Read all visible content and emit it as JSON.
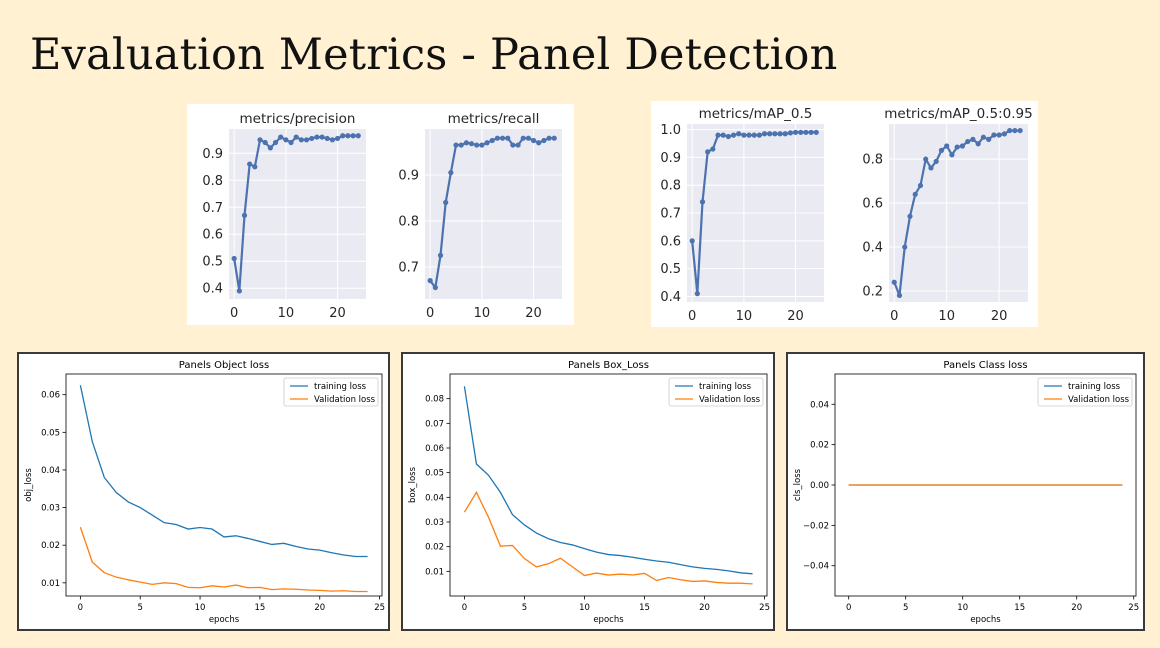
{
  "page": {
    "title": "Evaluation Metrics - Panel Detection"
  },
  "colors": {
    "page_bg": "#fff1d2",
    "metric_bg": "#eaeaf2",
    "metric_line": "#4c72b0",
    "train": "#1f77b4",
    "val": "#ff7f0e"
  },
  "chart_data": [
    {
      "type": "line",
      "title": "metrics/precision",
      "x": [
        0,
        1,
        2,
        3,
        4,
        5,
        6,
        7,
        8,
        9,
        10,
        11,
        12,
        13,
        14,
        15,
        16,
        17,
        18,
        19,
        20,
        21,
        22,
        23,
        24
      ],
      "series": [
        {
          "values": [
            0.51,
            0.39,
            0.67,
            0.86,
            0.85,
            0.95,
            0.94,
            0.92,
            0.94,
            0.96,
            0.95,
            0.94,
            0.96,
            0.95,
            0.95,
            0.955,
            0.96,
            0.96,
            0.955,
            0.95,
            0.955,
            0.965,
            0.965,
            0.965,
            0.965
          ]
        }
      ],
      "xlim": [
        -1,
        25.5
      ],
      "ylim": [
        0.36,
        0.99
      ],
      "xticks": [
        "0",
        "10",
        "20"
      ],
      "yticks": [
        "0.4",
        "0.5",
        "0.6",
        "0.7",
        "0.8",
        "0.9"
      ],
      "grid": true
    },
    {
      "type": "line",
      "title": "metrics/recall",
      "x": [
        0,
        1,
        2,
        3,
        4,
        5,
        6,
        7,
        8,
        9,
        10,
        11,
        12,
        13,
        14,
        15,
        16,
        17,
        18,
        19,
        20,
        21,
        22,
        23,
        24
      ],
      "series": [
        {
          "values": [
            0.67,
            0.655,
            0.725,
            0.84,
            0.905,
            0.965,
            0.965,
            0.97,
            0.968,
            0.965,
            0.965,
            0.97,
            0.975,
            0.98,
            0.98,
            0.98,
            0.965,
            0.965,
            0.98,
            0.98,
            0.975,
            0.97,
            0.975,
            0.98,
            0.98
          ]
        }
      ],
      "xlim": [
        -1,
        25.5
      ],
      "ylim": [
        0.63,
        1.0
      ],
      "xticks": [
        "0",
        "10",
        "20"
      ],
      "yticks": [
        "0.7",
        "0.8",
        "0.9"
      ],
      "grid": true
    },
    {
      "type": "line",
      "title": "metrics/mAP_0.5",
      "x": [
        0,
        1,
        2,
        3,
        4,
        5,
        6,
        7,
        8,
        9,
        10,
        11,
        12,
        13,
        14,
        15,
        16,
        17,
        18,
        19,
        20,
        21,
        22,
        23,
        24
      ],
      "series": [
        {
          "values": [
            0.6,
            0.41,
            0.74,
            0.92,
            0.93,
            0.98,
            0.98,
            0.975,
            0.98,
            0.985,
            0.98,
            0.98,
            0.98,
            0.98,
            0.985,
            0.985,
            0.985,
            0.985,
            0.985,
            0.988,
            0.99,
            0.99,
            0.99,
            0.99,
            0.99
          ]
        }
      ],
      "xlim": [
        -1,
        25.5
      ],
      "ylim": [
        0.38,
        1.02
      ],
      "xticks": [
        "0",
        "10",
        "20"
      ],
      "yticks": [
        "0.4",
        "0.5",
        "0.6",
        "0.7",
        "0.8",
        "0.9",
        "1.0"
      ],
      "grid": true
    },
    {
      "type": "line",
      "title": "metrics/mAP_0.5:0.95",
      "x": [
        0,
        1,
        2,
        3,
        4,
        5,
        6,
        7,
        8,
        9,
        10,
        11,
        12,
        13,
        14,
        15,
        16,
        17,
        18,
        19,
        20,
        21,
        22,
        23,
        24
      ],
      "series": [
        {
          "values": [
            0.24,
            0.18,
            0.4,
            0.54,
            0.64,
            0.68,
            0.8,
            0.76,
            0.79,
            0.84,
            0.86,
            0.82,
            0.855,
            0.86,
            0.88,
            0.89,
            0.87,
            0.9,
            0.89,
            0.91,
            0.91,
            0.915,
            0.93,
            0.93,
            0.93
          ]
        }
      ],
      "xlim": [
        -1,
        25.5
      ],
      "ylim": [
        0.15,
        0.96
      ],
      "xticks": [
        "0",
        "10",
        "20"
      ],
      "yticks": [
        "0.2",
        "0.4",
        "0.6",
        "0.8"
      ],
      "grid": true
    },
    {
      "type": "line",
      "title": "Panels Object loss",
      "xlabel": "epochs",
      "ylabel": "obj_loss",
      "x": [
        0,
        1,
        2,
        3,
        4,
        5,
        6,
        7,
        8,
        9,
        10,
        11,
        12,
        13,
        14,
        15,
        16,
        17,
        18,
        19,
        20,
        21,
        22,
        23,
        24
      ],
      "series": [
        {
          "name": "training loss",
          "values": [
            0.0625,
            0.0475,
            0.038,
            0.034,
            0.0315,
            0.03,
            0.028,
            0.026,
            0.0255,
            0.0243,
            0.0247,
            0.0243,
            0.0222,
            0.0225,
            0.0218,
            0.021,
            0.0202,
            0.0205,
            0.0197,
            0.019,
            0.0187,
            0.018,
            0.0174,
            0.017,
            0.017
          ]
        },
        {
          "name": "Validation loss",
          "values": [
            0.0248,
            0.0155,
            0.0127,
            0.0115,
            0.0108,
            0.0102,
            0.0096,
            0.01,
            0.0098,
            0.0088,
            0.0087,
            0.0092,
            0.0089,
            0.0094,
            0.0087,
            0.0088,
            0.0082,
            0.0084,
            0.0083,
            0.0081,
            0.008,
            0.0078,
            0.0079,
            0.0077,
            0.0077
          ]
        }
      ],
      "xlim": [
        -1.2,
        25.2
      ],
      "ylim": [
        0.0065,
        0.0655
      ],
      "xticks": [
        "0",
        "5",
        "10",
        "15",
        "20",
        "25"
      ],
      "yticks": [
        "0.01",
        "0.02",
        "0.03",
        "0.04",
        "0.05",
        "0.06"
      ],
      "legend": "top-right"
    },
    {
      "type": "line",
      "title": "Panels Box_Loss",
      "xlabel": "epochs",
      "ylabel": "box_loss",
      "x": [
        0,
        1,
        2,
        3,
        4,
        5,
        6,
        7,
        8,
        9,
        10,
        11,
        12,
        13,
        14,
        15,
        16,
        17,
        18,
        19,
        20,
        21,
        22,
        23,
        24
      ],
      "series": [
        {
          "name": "training loss",
          "values": [
            0.085,
            0.0535,
            0.049,
            0.042,
            0.033,
            0.0288,
            0.0255,
            0.0232,
            0.0217,
            0.0207,
            0.0192,
            0.0178,
            0.0168,
            0.0164,
            0.0157,
            0.0149,
            0.0142,
            0.0137,
            0.0127,
            0.0118,
            0.0112,
            0.0108,
            0.0102,
            0.0094,
            0.009
          ]
        },
        {
          "name": "Validation loss",
          "values": [
            0.034,
            0.042,
            0.032,
            0.0202,
            0.0205,
            0.0152,
            0.0118,
            0.0131,
            0.0153,
            0.0118,
            0.0083,
            0.0093,
            0.0085,
            0.0089,
            0.0085,
            0.0092,
            0.0063,
            0.0075,
            0.0066,
            0.0059,
            0.0061,
            0.0055,
            0.0052,
            0.0052,
            0.0049
          ]
        }
      ],
      "xlim": [
        -1.2,
        25.2
      ],
      "ylim": [
        0.0,
        0.09
      ],
      "xticks": [
        "0",
        "5",
        "10",
        "15",
        "20",
        "25"
      ],
      "yticks": [
        "0.01",
        "0.02",
        "0.03",
        "0.04",
        "0.05",
        "0.06",
        "0.07",
        "0.08"
      ],
      "legend": "top-right"
    },
    {
      "type": "line",
      "title": "Panels Class loss",
      "xlabel": "epochs",
      "ylabel": "cls_loss",
      "x": [
        0,
        1,
        2,
        3,
        4,
        5,
        6,
        7,
        8,
        9,
        10,
        11,
        12,
        13,
        14,
        15,
        16,
        17,
        18,
        19,
        20,
        21,
        22,
        23,
        24
      ],
      "series": [
        {
          "name": "training loss",
          "values": [
            0,
            0,
            0,
            0,
            0,
            0,
            0,
            0,
            0,
            0,
            0,
            0,
            0,
            0,
            0,
            0,
            0,
            0,
            0,
            0,
            0,
            0,
            0,
            0,
            0
          ]
        },
        {
          "name": "Validation loss",
          "values": [
            0,
            0,
            0,
            0,
            0,
            0,
            0,
            0,
            0,
            0,
            0,
            0,
            0,
            0,
            0,
            0,
            0,
            0,
            0,
            0,
            0,
            0,
            0,
            0,
            0
          ]
        }
      ],
      "xlim": [
        -1.2,
        25.2
      ],
      "ylim": [
        -0.055,
        0.055
      ],
      "xticks": [
        "0",
        "5",
        "10",
        "15",
        "20",
        "25"
      ],
      "yticks": [
        "0.04",
        "0.02",
        "0.00",
        "−0.02",
        "−0.04"
      ],
      "legend": "top-right"
    }
  ]
}
